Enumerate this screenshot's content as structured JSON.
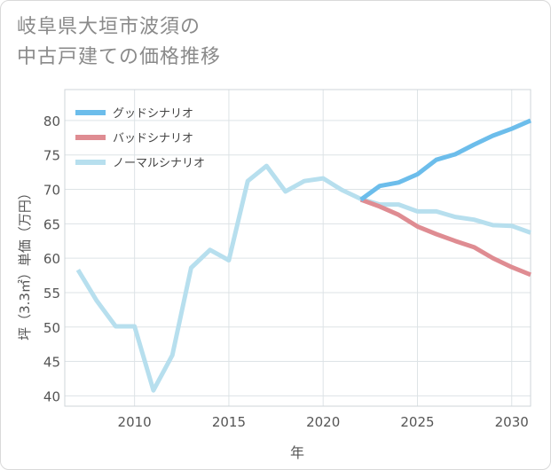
{
  "title_line1": "岐阜県大垣市波須の",
  "title_line2": "中古戸建ての価格推移",
  "chart_data": {
    "type": "line",
    "xlabel": "年",
    "ylabel": "坪（3.3㎡）単価（万円）",
    "xlim": [
      2006.3,
      2031
    ],
    "ylim": [
      38.5,
      84.5
    ],
    "xticks": [
      2010,
      2015,
      2020,
      2025,
      2030
    ],
    "yticks": [
      40,
      45,
      50,
      55,
      60,
      65,
      70,
      75,
      80
    ],
    "grid": true,
    "legend_position": "top-left",
    "series": [
      {
        "name": "グッドシナリオ",
        "color": "#6cbdeb",
        "x": [
          2022,
          2023,
          2024,
          2025,
          2026,
          2027,
          2028,
          2029,
          2030,
          2031
        ],
        "y": [
          68.5,
          70.5,
          71.0,
          72.2,
          74.3,
          75.1,
          76.5,
          77.8,
          78.8,
          80.0
        ]
      },
      {
        "name": "バッドシナリオ",
        "color": "#df8c92",
        "x": [
          2022,
          2023,
          2024,
          2025,
          2026,
          2027,
          2028,
          2029,
          2030,
          2031
        ],
        "y": [
          68.5,
          67.5,
          66.3,
          64.6,
          63.5,
          62.5,
          61.6,
          60.0,
          58.7,
          57.6
        ]
      },
      {
        "name": "ノーマルシナリオ",
        "color": "#b7dfee",
        "x": [
          2007,
          2008,
          2009,
          2010,
          2011,
          2012,
          2013,
          2014,
          2015,
          2016,
          2017,
          2018,
          2019,
          2020,
          2021,
          2022,
          2023,
          2024,
          2025,
          2026,
          2027,
          2028,
          2029,
          2030,
          2031
        ],
        "y": [
          58.3,
          53.8,
          50.1,
          50.1,
          40.8,
          45.9,
          58.6,
          61.2,
          59.7,
          71.2,
          73.4,
          69.7,
          71.2,
          71.6,
          69.9,
          68.6,
          67.8,
          67.8,
          66.8,
          66.8,
          66.0,
          65.6,
          64.8,
          64.7,
          63.7
        ]
      }
    ]
  }
}
